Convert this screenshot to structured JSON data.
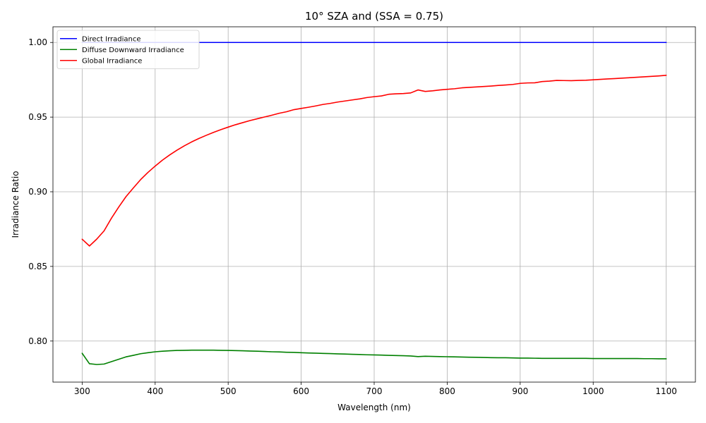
{
  "chart_data": {
    "type": "line",
    "title": "10° SZA and (SSA = 0.75)",
    "xlabel": "Wavelength (nm)",
    "ylabel": "Irradiance Ratio",
    "xlim": [
      260,
      1140
    ],
    "ylim": [
      0.7725,
      1.0105
    ],
    "xticks": [
      300,
      400,
      500,
      600,
      700,
      800,
      900,
      1000,
      1100
    ],
    "yticks": [
      0.8,
      0.85,
      0.9,
      0.95,
      1.0
    ],
    "grid": true,
    "legend_position": "upper left",
    "x": [
      300,
      310,
      320,
      330,
      340,
      350,
      360,
      370,
      380,
      390,
      400,
      410,
      420,
      430,
      440,
      450,
      460,
      470,
      480,
      490,
      500,
      510,
      520,
      530,
      540,
      550,
      560,
      570,
      580,
      590,
      600,
      610,
      620,
      630,
      640,
      650,
      660,
      670,
      680,
      690,
      700,
      710,
      720,
      730,
      740,
      750,
      760,
      770,
      780,
      790,
      800,
      810,
      820,
      830,
      840,
      850,
      860,
      870,
      880,
      890,
      900,
      910,
      920,
      930,
      940,
      950,
      960,
      970,
      980,
      990,
      1000,
      1010,
      1020,
      1030,
      1040,
      1050,
      1060,
      1070,
      1080,
      1090,
      1100
    ],
    "series": [
      {
        "name": "Direct Irradiance",
        "color": "#0000ff",
        "values": [
          1.0,
          1.0,
          1.0,
          1.0,
          1.0,
          1.0,
          1.0,
          1.0,
          1.0,
          1.0,
          1.0,
          1.0,
          1.0,
          1.0,
          1.0,
          1.0,
          1.0,
          1.0,
          1.0,
          1.0,
          1.0,
          1.0,
          1.0,
          1.0,
          1.0,
          1.0,
          1.0,
          1.0,
          1.0,
          1.0,
          1.0,
          1.0,
          1.0,
          1.0,
          1.0,
          1.0,
          1.0,
          1.0,
          1.0,
          1.0,
          1.0,
          1.0,
          1.0,
          1.0,
          1.0,
          1.0,
          1.0,
          1.0,
          1.0,
          1.0,
          1.0,
          1.0,
          1.0,
          1.0,
          1.0,
          1.0,
          1.0,
          1.0,
          1.0,
          1.0,
          1.0,
          1.0,
          1.0,
          1.0,
          1.0,
          1.0,
          1.0,
          1.0,
          1.0,
          1.0,
          1.0,
          1.0,
          1.0,
          1.0,
          1.0,
          1.0,
          1.0,
          1.0,
          1.0,
          1.0,
          1.0
        ]
      },
      {
        "name": "Diffuse Downward Irradiance",
        "color": "#008000",
        "values": [
          0.7918,
          0.7848,
          0.7843,
          0.7846,
          0.7862,
          0.7878,
          0.7894,
          0.7904,
          0.7915,
          0.7922,
          0.7928,
          0.7932,
          0.7935,
          0.7937,
          0.7938,
          0.7939,
          0.7939,
          0.7939,
          0.7939,
          0.7938,
          0.7937,
          0.7936,
          0.7935,
          0.7933,
          0.7932,
          0.793,
          0.7928,
          0.7927,
          0.7925,
          0.7924,
          0.7922,
          0.792,
          0.7919,
          0.7917,
          0.7916,
          0.7914,
          0.7913,
          0.7911,
          0.791,
          0.7908,
          0.7907,
          0.7906,
          0.7904,
          0.7903,
          0.7902,
          0.79,
          0.7896,
          0.7898,
          0.7897,
          0.7896,
          0.7895,
          0.7894,
          0.7893,
          0.7892,
          0.7891,
          0.789,
          0.7889,
          0.7888,
          0.7888,
          0.7887,
          0.7886,
          0.7886,
          0.7885,
          0.7884,
          0.7884,
          0.7884,
          0.7884,
          0.7884,
          0.7884,
          0.7884,
          0.7883,
          0.7883,
          0.7883,
          0.7883,
          0.7883,
          0.7883,
          0.7883,
          0.7882,
          0.7882,
          0.7881,
          0.7881
        ]
      },
      {
        "name": "Global Irradiance",
        "color": "#ff0000",
        "values": [
          0.8682,
          0.8637,
          0.8683,
          0.8738,
          0.8822,
          0.8897,
          0.8967,
          0.9025,
          0.9081,
          0.9129,
          0.9172,
          0.9212,
          0.9247,
          0.9279,
          0.9308,
          0.9334,
          0.9357,
          0.9378,
          0.9398,
          0.9416,
          0.9433,
          0.9449,
          0.9463,
          0.9477,
          0.9489,
          0.9501,
          0.9513,
          0.9526,
          0.9536,
          0.955,
          0.9558,
          0.9566,
          0.9575,
          0.9585,
          0.9592,
          0.9601,
          0.9608,
          0.9615,
          0.9622,
          0.9631,
          0.9637,
          0.9642,
          0.9653,
          0.9656,
          0.9658,
          0.9662,
          0.9682,
          0.9672,
          0.9676,
          0.9682,
          0.9686,
          0.969,
          0.9696,
          0.9699,
          0.9702,
          0.9705,
          0.9708,
          0.9712,
          0.9715,
          0.9719,
          0.9726,
          0.9729,
          0.973,
          0.9738,
          0.9741,
          0.9746,
          0.9745,
          0.9744,
          0.9746,
          0.9747,
          0.975,
          0.9753,
          0.9756,
          0.9758,
          0.9761,
          0.9764,
          0.9767,
          0.977,
          0.9773,
          0.9776,
          0.978
        ]
      }
    ]
  }
}
